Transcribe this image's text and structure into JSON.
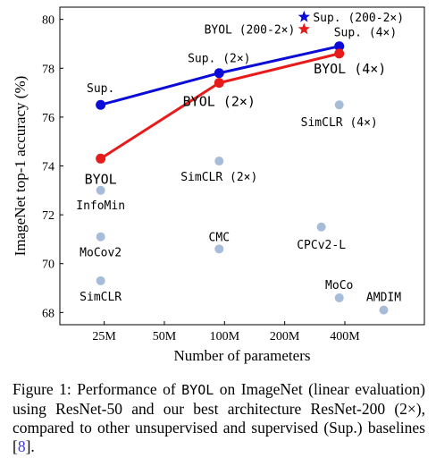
{
  "chart_data": {
    "type": "scatter",
    "xlabel": "Number of parameters",
    "ylabel": "ImageNet top-1 accuracy (%)",
    "x_scale": "log",
    "xlim": [
      15,
      1000
    ],
    "ylim": [
      67.5,
      80.5
    ],
    "x_ticks": [
      {
        "value": 25,
        "label": "25M"
      },
      {
        "value": 50,
        "label": "50M"
      },
      {
        "value": 100,
        "label": "100M"
      },
      {
        "value": 200,
        "label": "200M"
      },
      {
        "value": 400,
        "label": "400M"
      }
    ],
    "y_ticks": [
      68,
      70,
      72,
      74,
      76,
      78,
      80
    ],
    "grid": false,
    "colors": {
      "supervised": "#0b0bd8",
      "byol": "#e81b1b",
      "other": "#a6bcd8"
    },
    "series": [
      {
        "name": "Sup.",
        "color": "#0b0bd8",
        "points": [
          {
            "x": 24,
            "y": 76.5,
            "label": "Sup."
          },
          {
            "x": 94,
            "y": 77.8,
            "label": "Sup. (2×)"
          },
          {
            "x": 375,
            "y": 78.9,
            "label": "Sup. (4×)"
          }
        ]
      },
      {
        "name": "BYOL",
        "color": "#e81b1b",
        "points": [
          {
            "x": 24,
            "y": 74.3,
            "label": "BYOL"
          },
          {
            "x": 94,
            "y": 77.4,
            "label": "BYOL (2×)"
          },
          {
            "x": 375,
            "y": 78.6,
            "label": "BYOL (4×)"
          }
        ]
      }
    ],
    "stars": [
      {
        "x": 250,
        "y": 80.1,
        "label": "Sup. (200-2×)",
        "color": "#0b0bd8"
      },
      {
        "x": 250,
        "y": 79.6,
        "label": "BYOL (200-2×)",
        "color": "#e81b1b"
      }
    ],
    "others": [
      {
        "x": 24,
        "y": 73.0,
        "label": "InfoMin"
      },
      {
        "x": 24,
        "y": 71.1,
        "label": "MoCov2"
      },
      {
        "x": 24,
        "y": 69.3,
        "label": "SimCLR"
      },
      {
        "x": 94,
        "y": 74.2,
        "label": "SimCLR (2×)"
      },
      {
        "x": 94,
        "y": 70.6,
        "label": "CMC"
      },
      {
        "x": 305,
        "y": 71.5,
        "label": "CPCv2-L"
      },
      {
        "x": 375,
        "y": 76.5,
        "label": "SimCLR (4×)"
      },
      {
        "x": 375,
        "y": 68.6,
        "label": "MoCo"
      },
      {
        "x": 626,
        "y": 68.1,
        "label": "AMDIM"
      }
    ]
  },
  "caption": {
    "prefix": "Figure 1: Performance of ",
    "method": "BYOL",
    "middle": " on ImageNet (linear evaluation) using ResNet-50 and our best architecture ResNet-200 (2×), compared to other unsupervised and supervised ",
    "sup": "(Sup.)",
    "suffix": " baselines [",
    "cite": "8",
    "end": "]."
  }
}
